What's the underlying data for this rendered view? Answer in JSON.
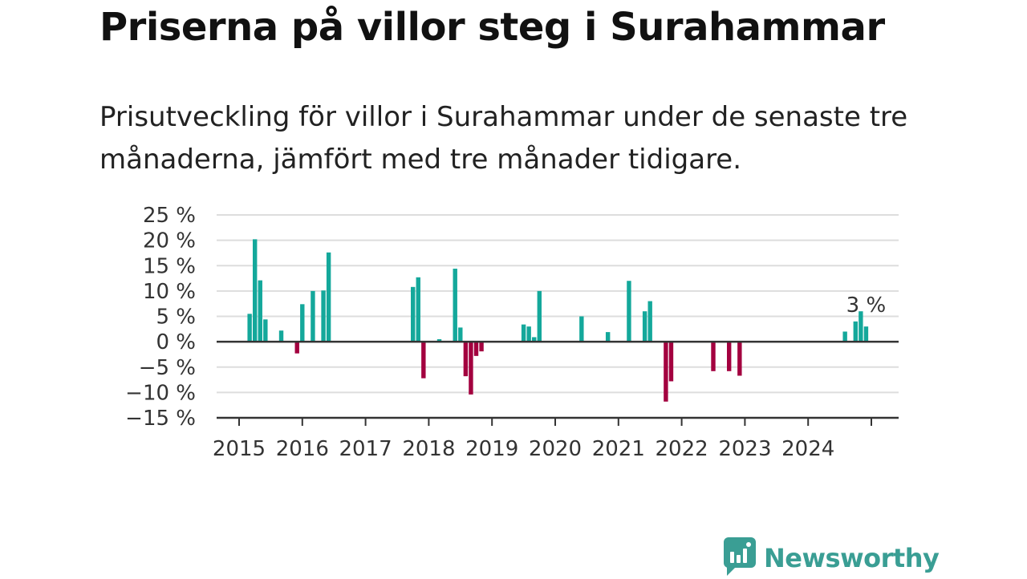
{
  "title": "Priserna på villor steg i Surahammar",
  "subtitle": "Prisutveckling för villor i Surahammar under de senaste tre månaderna, jämfört med tre månader tidigare.",
  "brand": {
    "name": "Newsworthy",
    "color": "#3a9e94",
    "icon": "newsworthy-logo-icon"
  },
  "colors": {
    "positive": "#14a89b",
    "negative": "#a3003f",
    "grid": "#dddddd",
    "axis": "#333333"
  },
  "chart_data": {
    "type": "bar",
    "title": "Priserna på villor steg i Surahammar",
    "xlabel": "",
    "ylabel": "",
    "ylim": [
      -15,
      25
    ],
    "y_ticks": [
      25,
      20,
      15,
      10,
      5,
      0,
      -5,
      -10,
      -15
    ],
    "y_tick_labels": [
      "25 %",
      "20 %",
      "15 %",
      "10 %",
      "5 %",
      "0 %",
      "−5 %",
      "−10 %",
      "−15 %"
    ],
    "x_tick_labels": [
      "2015",
      "2016",
      "2017",
      "2018",
      "2019",
      "2020",
      "2021",
      "2022",
      "2023",
      "2024"
    ],
    "grid": true,
    "series": [
      {
        "points": [
          {
            "x": "2015-03",
            "value": 5.5
          },
          {
            "x": "2015-04",
            "value": 20.2
          },
          {
            "x": "2015-05",
            "value": 12.1
          },
          {
            "x": "2015-06",
            "value": 4.4
          },
          {
            "x": "2015-09",
            "value": 2.2
          },
          {
            "x": "2015-12",
            "value": -2.3
          },
          {
            "x": "2016-01",
            "value": 7.4
          },
          {
            "x": "2016-03",
            "value": 10.0
          },
          {
            "x": "2016-05",
            "value": 10.1
          },
          {
            "x": "2016-06",
            "value": 17.6
          },
          {
            "x": "2017-10",
            "value": 10.8
          },
          {
            "x": "2017-11",
            "value": 12.7
          },
          {
            "x": "2017-12",
            "value": -7.2
          },
          {
            "x": "2018-03",
            "value": 0.5
          },
          {
            "x": "2018-06",
            "value": 14.4
          },
          {
            "x": "2018-07",
            "value": 2.8
          },
          {
            "x": "2018-08",
            "value": -6.8
          },
          {
            "x": "2018-09",
            "value": -10.4
          },
          {
            "x": "2018-10",
            "value": -2.8
          },
          {
            "x": "2018-11",
            "value": -1.9
          },
          {
            "x": "2019-07",
            "value": 3.4
          },
          {
            "x": "2019-08",
            "value": 3.0
          },
          {
            "x": "2019-09",
            "value": 0.9
          },
          {
            "x": "2019-10",
            "value": 10.0
          },
          {
            "x": "2020-06",
            "value": 5.0
          },
          {
            "x": "2020-11",
            "value": 1.9
          },
          {
            "x": "2021-03",
            "value": 12.0
          },
          {
            "x": "2021-06",
            "value": 6.0
          },
          {
            "x": "2021-07",
            "value": 8.0
          },
          {
            "x": "2021-10",
            "value": -11.8
          },
          {
            "x": "2021-11",
            "value": -7.8
          },
          {
            "x": "2022-07",
            "value": -5.8
          },
          {
            "x": "2022-10",
            "value": -5.8
          },
          {
            "x": "2022-12",
            "value": -6.7
          },
          {
            "x": "2024-08",
            "value": 2.0
          },
          {
            "x": "2024-10",
            "value": 4.0
          },
          {
            "x": "2024-11",
            "value": 6.0
          },
          {
            "x": "2024-12",
            "value": 3.0
          }
        ]
      }
    ],
    "annotation": {
      "x": "2024-12",
      "text": "3 %"
    }
  }
}
